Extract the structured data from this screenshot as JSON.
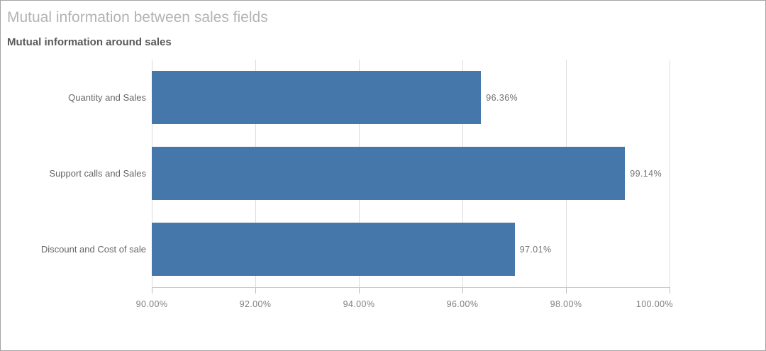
{
  "chart_data": {
    "type": "bar",
    "orientation": "horizontal",
    "title": "Mutual information between sales fields",
    "subtitle": "Mutual information around sales",
    "categories": [
      "Quantity and Sales",
      "Support calls and Sales",
      "Discount and Cost of sale"
    ],
    "values": [
      96.36,
      99.14,
      97.01
    ],
    "value_labels": [
      "96.36%",
      "99.14%",
      "97.01%"
    ],
    "x_axis": {
      "min": 90,
      "max": 100,
      "tick_values": [
        90,
        92,
        94,
        96,
        98,
        100
      ],
      "tick_labels": [
        "90.00%",
        "92.00%",
        "94.00%",
        "96.00%",
        "98.00%",
        "100.00%"
      ]
    },
    "grid": true,
    "legend": false,
    "colors": {
      "bar": "#4577aa",
      "gridline": "#dcdcdc",
      "axis_line": "#c9c9c9",
      "title": "#b3b3b3",
      "subtitle": "#595959",
      "category_label": "#666666",
      "value_label": "#737373",
      "axis_label": "#808080"
    }
  }
}
